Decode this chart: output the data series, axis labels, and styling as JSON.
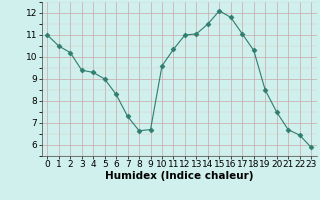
{
  "x": [
    0,
    1,
    2,
    3,
    4,
    5,
    6,
    7,
    8,
    9,
    10,
    11,
    12,
    13,
    14,
    15,
    16,
    17,
    18,
    19,
    20,
    21,
    22,
    23
  ],
  "y": [
    11.0,
    10.5,
    10.2,
    9.4,
    9.3,
    9.0,
    8.3,
    7.3,
    6.65,
    6.7,
    9.6,
    10.35,
    11.0,
    11.05,
    11.5,
    12.1,
    11.8,
    11.05,
    10.3,
    8.5,
    7.5,
    6.7,
    6.45,
    5.9
  ],
  "line_color": "#2e7d6e",
  "marker": "D",
  "marker_size": 2.5,
  "bg_color": "#cff0ec",
  "grid_color_major": "#c8a8a8",
  "grid_color_minor": "#ddc8c8",
  "xlabel": "Humidex (Indice chaleur)",
  "xlabel_weight": "bold",
  "xlim": [
    -0.5,
    23.5
  ],
  "ylim": [
    5.5,
    12.5
  ],
  "yticks": [
    6,
    7,
    8,
    9,
    10,
    11,
    12
  ],
  "xticks": [
    0,
    1,
    2,
    3,
    4,
    5,
    6,
    7,
    8,
    9,
    10,
    11,
    12,
    13,
    14,
    15,
    16,
    17,
    18,
    19,
    20,
    21,
    22,
    23
  ],
  "tick_fontsize": 6.5,
  "xlabel_fontsize": 7.5
}
